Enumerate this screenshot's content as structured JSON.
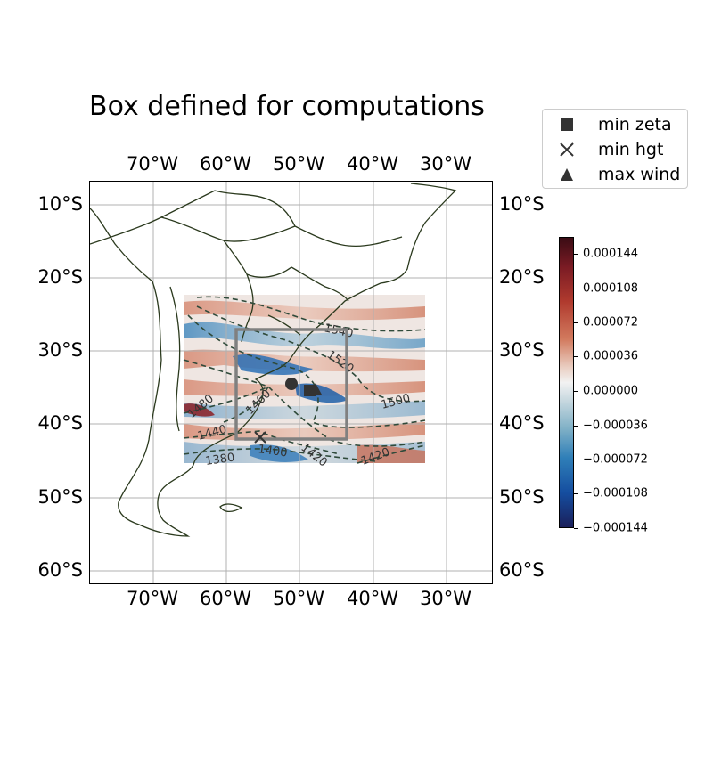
{
  "title": "Box defined for computations",
  "longitude_labels": [
    "70°W",
    "60°W",
    "50°W",
    "40°W",
    "30°W"
  ],
  "latitude_labels": [
    "10°S",
    "20°S",
    "30°S",
    "40°S",
    "50°S",
    "60°S"
  ],
  "legend": {
    "items": [
      {
        "label": "min zeta",
        "symbol": "square",
        "color": "#333333"
      },
      {
        "label": "min hgt",
        "symbol": "x-mark",
        "color": "#333333"
      },
      {
        "label": "max wind",
        "symbol": "triangle",
        "color": "#333333"
      }
    ]
  },
  "colorbar": {
    "tick_labels": [
      "0.000144",
      "0.000108",
      "0.000072",
      "0.000036",
      "0.000000",
      "−0.000036",
      "−0.000072",
      "−0.000108",
      "−0.000144"
    ],
    "colors": {
      "max": "#3a0c14",
      "zero": "#f2f2f2",
      "min": "#1a1f5a"
    }
  },
  "contour_labels": [
    "1540",
    "1520",
    "1500",
    "1480",
    "1460",
    "1440",
    "1400",
    "1420",
    "1380",
    "1420"
  ],
  "map": {
    "extent_lon": [
      -79,
      -24
    ],
    "extent_lat": [
      -62,
      -7
    ],
    "data_extent_lon": [
      -66,
      -33
    ],
    "data_extent_lat": [
      -45,
      -22
    ],
    "computation_box": {
      "lon": [
        -58,
        -43
      ],
      "lat": [
        -42,
        -27
      ],
      "color": "#808080"
    },
    "markers": {
      "min_zeta": {
        "lon": -48.5,
        "lat": -35.3
      },
      "min_hgt": {
        "lon": -55,
        "lat": -42
      },
      "max_wind": {
        "lon": -47.8,
        "lat": -35.0
      },
      "circle": {
        "lon": -51,
        "lat": -34.3
      }
    },
    "coastline_color": "#2b3a1e",
    "grid_color": "#b0b0b0"
  }
}
